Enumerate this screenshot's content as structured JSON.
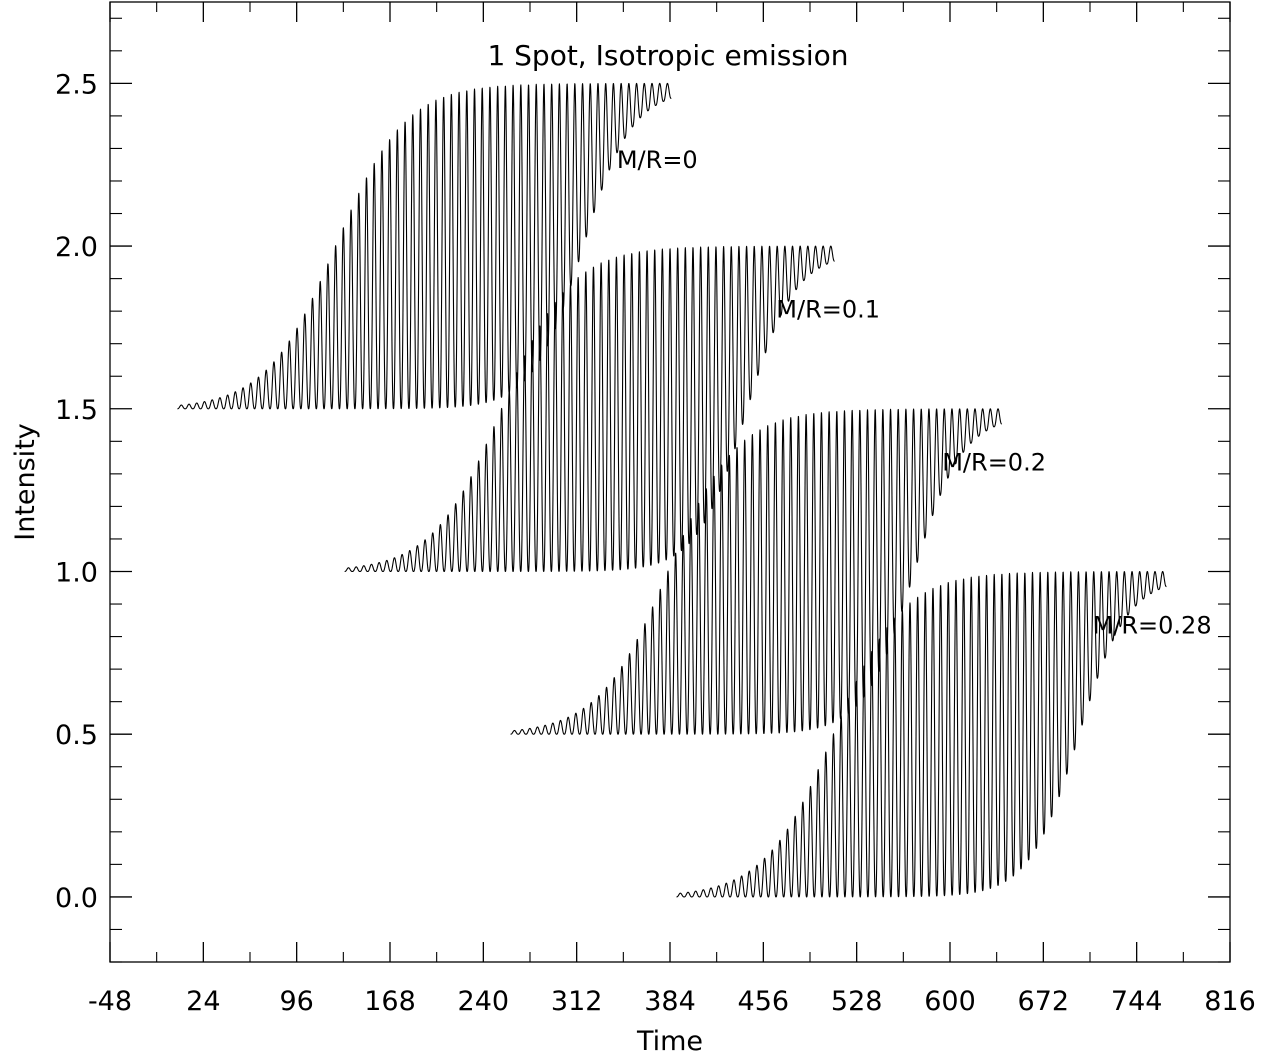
{
  "chart_data": {
    "type": "line",
    "title": "1 Spot, Isotropic emission",
    "xlabel": "Time",
    "ylabel": "Intensity",
    "xlim": [
      -48,
      816
    ],
    "ylim": [
      -0.2,
      2.75
    ],
    "xticks": [
      -48,
      24,
      96,
      168,
      240,
      312,
      384,
      456,
      528,
      600,
      672,
      744,
      816
    ],
    "xtick_labels": [
      "-48",
      "24",
      "96",
      "168",
      "240",
      "312",
      "384",
      "456",
      "528",
      "600",
      "672",
      "744",
      "816"
    ],
    "yticks": [
      0.0,
      0.5,
      1.0,
      1.5,
      2.0,
      2.5
    ],
    "ytick_labels": [
      "0.0",
      "0.5",
      "1.0",
      "1.5",
      "2.0",
      "2.5"
    ],
    "grid": false,
    "series": [
      {
        "label": "M/R=0",
        "baseline": 1.5,
        "x_start": 4,
        "x_end": 385,
        "label_x": 343,
        "label_y": 2.24
      },
      {
        "label": "M/R=0.1",
        "baseline": 1.0,
        "x_start": 133,
        "x_end": 511,
        "label_x": 466,
        "label_y": 1.78
      },
      {
        "label": "M/R=0.2",
        "baseline": 0.5,
        "x_start": 261,
        "x_end": 640,
        "label_x": 594,
        "label_y": 1.31
      },
      {
        "label": "M/R=0.28",
        "baseline": 0.0,
        "x_start": 389,
        "x_end": 767,
        "label_x": 710,
        "label_y": 0.81
      }
    ],
    "curve_shape": {
      "amplitude": 1.0,
      "cycles": 64,
      "ramp_center": 0.32,
      "ramp_width": 0.07,
      "decay_center": 0.82,
      "decay_width": 0.05,
      "decay_floor": 0.02
    }
  }
}
